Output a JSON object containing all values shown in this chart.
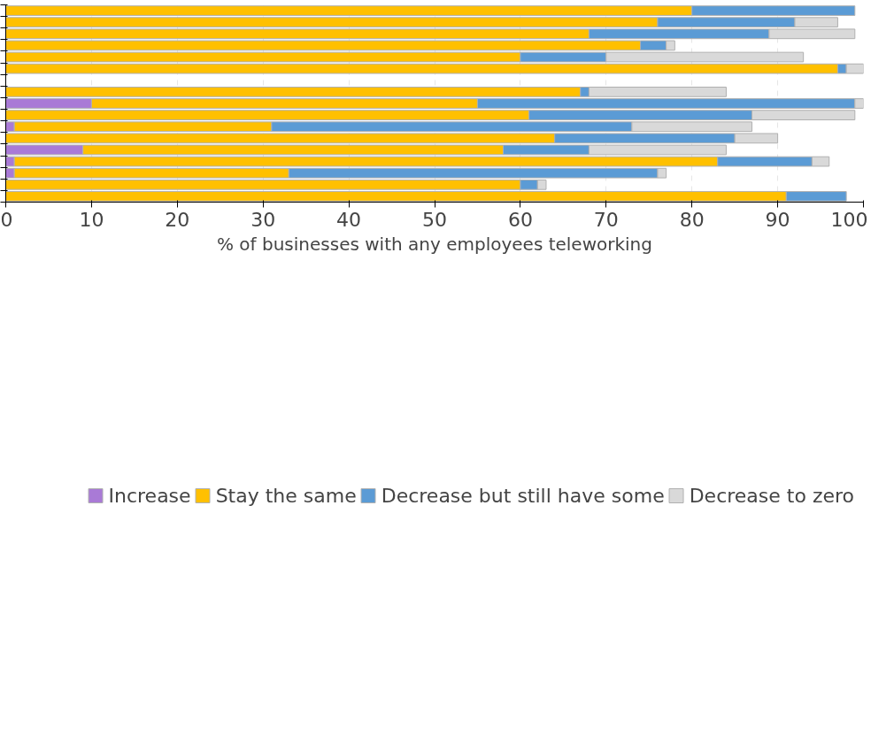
{
  "chart_data": {
    "type": "bar",
    "orientation": "horizontal",
    "stacked": true,
    "xlabel": "% of businesses with any employees teleworking",
    "categories": [
      null,
      null,
      null,
      null,
      null,
      null,
      null,
      null,
      null,
      null,
      null,
      null,
      null,
      null,
      null,
      null,
      null
    ],
    "xlim": [
      0,
      100
    ],
    "xticks": [
      0,
      10,
      20,
      30,
      40,
      50,
      60,
      70,
      80,
      90,
      100
    ],
    "grid": "x",
    "legend": "bottom",
    "tick_labels": "x",
    "series": [
      {
        "name": "Increase",
        "color": "#a97ad6",
        "values": [
          null,
          null,
          null,
          null,
          null,
          null,
          null,
          null,
          10,
          null,
          1,
          null,
          9,
          1,
          1,
          null,
          null
        ]
      },
      {
        "name": "Stay the same",
        "color": "#ffc000",
        "values": [
          80,
          76,
          68,
          74,
          60,
          97,
          null,
          67,
          45,
          61,
          30,
          64,
          49,
          82,
          32,
          60,
          91
        ]
      },
      {
        "name": "Decrease but still have some",
        "color": "#5b9bd5",
        "values": [
          19,
          16,
          21,
          3,
          10,
          1,
          null,
          1,
          44,
          26,
          42,
          21,
          10,
          11,
          43,
          2,
          7
        ]
      },
      {
        "name": "Decrease to zero",
        "color": "#d9d9d9",
        "values": [
          null,
          5,
          10,
          1,
          23,
          2,
          null,
          16,
          1,
          12,
          14,
          5,
          16,
          2,
          1,
          1,
          null
        ]
      }
    ]
  }
}
